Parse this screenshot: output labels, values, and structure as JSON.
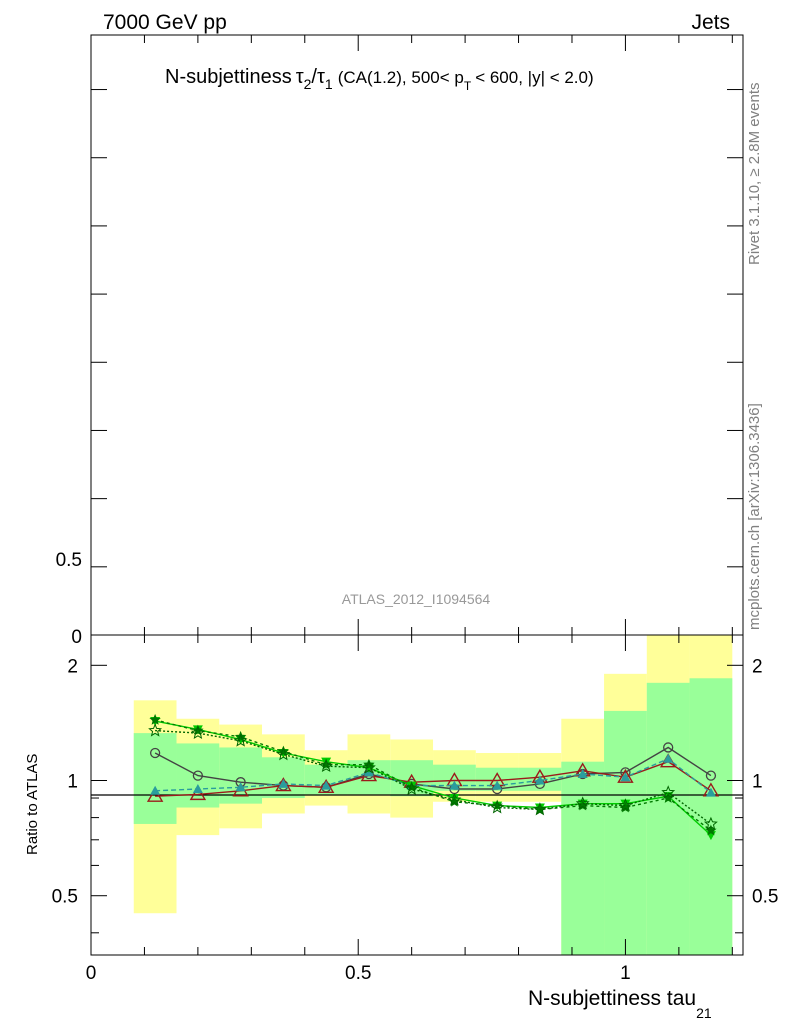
{
  "header": {
    "left": "7000 GeV pp",
    "right": "Jets"
  },
  "side_text": {
    "rivet": "Rivet 3.1.10, ≥ 2.8M events",
    "mcplots": "mcplots.cern.ch [arXiv:1306.3436]"
  },
  "watermark": "ATLAS_2012_I1094564",
  "chart_data": [
    {
      "type": "line",
      "panel": "main",
      "title_parts": {
        "prefix": "N-subjettiness",
        "tau": "τ",
        "sub2": "2",
        "slash": "/",
        "sub1": "1",
        "cut1": "(CA(1.2), 500< p",
        "pt_sub": "T",
        "cut2": "< 600, |y| < 2.0)"
      },
      "ytick_labels": [
        "0.5",
        "0"
      ],
      "xlim": [
        0,
        1.22
      ],
      "ylim": [
        0,
        4.4
      ],
      "series": []
    },
    {
      "type": "line",
      "panel": "ratio",
      "ylabel": "Ratio to ATLAS",
      "xlabel": "N-subjettiness tau",
      "xlabel_sub": "21",
      "xlim": [
        0,
        1.22
      ],
      "ylim": [
        0.35,
        2.4
      ],
      "x_ticks": [
        0,
        0.5,
        1
      ],
      "x_tick_labels": [
        "0",
        "0.5",
        "1"
      ],
      "y_ticks": [
        0.5,
        1,
        2
      ],
      "y_tick_labels": [
        "0.5",
        "1",
        "2"
      ],
      "bins": [
        0.08,
        0.16,
        0.24,
        0.32,
        0.4,
        0.48,
        0.56,
        0.64,
        0.72,
        0.8,
        0.88,
        0.96,
        1.04,
        1.12,
        1.2
      ],
      "band_outer": [
        [
          0.45,
          1.62
        ],
        [
          0.72,
          1.45
        ],
        [
          0.75,
          1.4
        ],
        [
          0.82,
          1.32
        ],
        [
          0.86,
          1.2
        ],
        [
          0.82,
          1.32
        ],
        [
          0.8,
          1.28
        ],
        [
          0.88,
          1.2
        ],
        [
          0.88,
          1.18
        ],
        [
          0.88,
          1.18
        ],
        [
          0.3,
          1.45
        ],
        [
          0.3,
          1.9
        ],
        [
          0.3,
          2.4
        ],
        [
          0.3,
          2.4
        ]
      ],
      "band_inner": [
        [
          0.77,
          1.33
        ],
        [
          0.85,
          1.25
        ],
        [
          0.87,
          1.22
        ],
        [
          0.9,
          1.15
        ],
        [
          0.92,
          1.1
        ],
        [
          0.92,
          1.13
        ],
        [
          0.91,
          1.13
        ],
        [
          0.94,
          1.1
        ],
        [
          0.94,
          1.08
        ],
        [
          0.94,
          1.08
        ],
        [
          0.3,
          1.12
        ],
        [
          0.3,
          1.52
        ],
        [
          0.3,
          1.8
        ],
        [
          0.3,
          1.85
        ]
      ],
      "x": [
        0.12,
        0.2,
        0.28,
        0.36,
        0.44,
        0.52,
        0.6,
        0.68,
        0.76,
        0.84,
        0.92,
        1.0,
        1.08,
        1.16
      ],
      "series": [
        {
          "color": "#444444",
          "marker": "circle",
          "dash": "",
          "values": [
            1.18,
            1.03,
            0.99,
            0.97,
            0.96,
            1.04,
            0.98,
            0.95,
            0.95,
            0.98,
            1.04,
            1.05,
            1.22,
            1.03
          ]
        },
        {
          "color": "#9b1b1b",
          "marker": "triangle-open",
          "dash": "",
          "values": [
            0.91,
            0.92,
            0.94,
            0.97,
            0.96,
            1.03,
            0.99,
            1.0,
            1.0,
            1.02,
            1.06,
            1.02,
            1.12,
            0.94
          ]
        },
        {
          "color": "#2a9d9d",
          "marker": "triangle-filled",
          "dash": "5,3",
          "values": [
            0.94,
            0.95,
            0.96,
            0.98,
            0.97,
            1.05,
            0.97,
            0.97,
            0.97,
            1.0,
            1.04,
            1.02,
            1.14,
            0.93
          ]
        },
        {
          "color": "#00cc00",
          "marker": "triangle-down",
          "dash": "",
          "values": [
            1.43,
            1.36,
            1.28,
            1.18,
            1.12,
            1.08,
            0.97,
            0.9,
            0.86,
            0.85,
            0.87,
            0.87,
            0.91,
            0.72
          ]
        },
        {
          "color": "#007a00",
          "marker": "star-filled",
          "dash": "3,3",
          "values": [
            1.44,
            1.35,
            1.3,
            1.19,
            1.1,
            1.1,
            0.96,
            0.88,
            0.86,
            0.84,
            0.86,
            0.85,
            0.9,
            0.74
          ]
        },
        {
          "color": "#006600",
          "marker": "star-open",
          "dash": "2,2",
          "values": [
            1.35,
            1.33,
            1.27,
            1.17,
            1.09,
            1.08,
            0.95,
            0.89,
            0.85,
            0.84,
            0.87,
            0.86,
            0.93,
            0.77
          ]
        }
      ]
    }
  ]
}
